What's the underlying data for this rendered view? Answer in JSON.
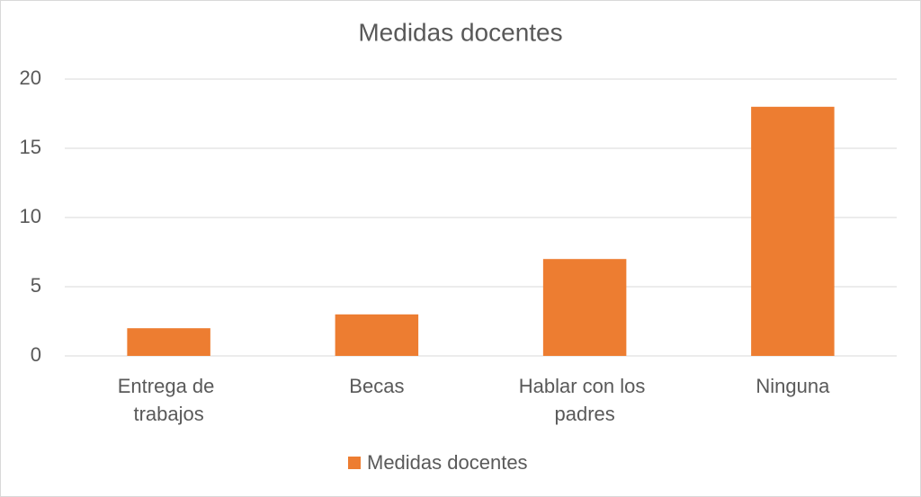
{
  "chart_data": {
    "type": "bar",
    "title": "Medidas docentes",
    "categories": [
      "Entrega de trabajos",
      "Becas",
      "Hablar con los padres",
      "Ninguna"
    ],
    "series": [
      {
        "name": "Medidas docentes",
        "color": "#ed7d31",
        "values": [
          2,
          3,
          7,
          18
        ]
      }
    ],
    "ylim": [
      0,
      20
    ],
    "yticks": [
      0,
      5,
      10,
      15,
      20
    ],
    "grid": true,
    "legend": "bottom"
  }
}
